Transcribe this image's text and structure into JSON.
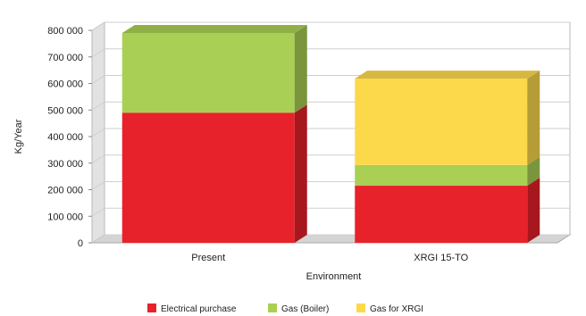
{
  "chart_data": {
    "type": "bar",
    "stacked": true,
    "three_d": true,
    "categories": [
      "Present",
      "XRGI 15-TO"
    ],
    "series": [
      {
        "name": "Electrical purchase",
        "values": [
          490000,
          215000
        ],
        "color": "#e8222a"
      },
      {
        "name": "Gas (Boiler)",
        "values": [
          300000,
          78000
        ],
        "color": "#a9cf54"
      },
      {
        "name": "Gas for XRGI",
        "values": [
          0,
          325000
        ],
        "color": "#fcd94b"
      }
    ],
    "title": "",
    "xlabel": "Environment",
    "ylabel": "Kg/Year",
    "ylim": [
      0,
      800000
    ],
    "y_ticks": [
      0,
      100000,
      200000,
      300000,
      400000,
      500000,
      600000,
      700000,
      800000
    ],
    "y_tick_labels": [
      "0",
      "100 000",
      "200 000",
      "300 000",
      "400 000",
      "500 000",
      "600 000",
      "700 000",
      "800 000"
    ],
    "grid": true,
    "legend_position": "bottom"
  }
}
